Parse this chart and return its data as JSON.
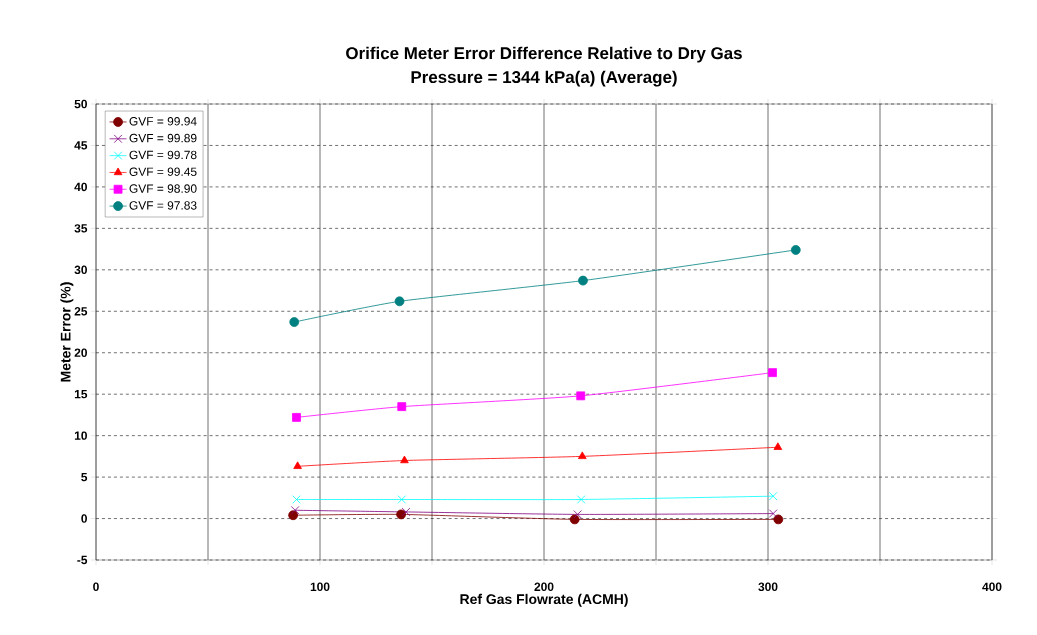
{
  "chart_data": {
    "type": "line",
    "title": "Orifice Meter Error Difference Relative to Dry Gas",
    "subtitle": "Pressure = 1344 kPa(a) (Average)",
    "xlabel": "Ref Gas Flowrate (ACMH)",
    "ylabel": "Meter Error (%)",
    "xlim": [
      0,
      400
    ],
    "xticks": [
      0,
      {
        "value": 50,
        "label": null
      },
      100,
      {
        "value": 150,
        "label": null
      },
      200,
      {
        "value": 250,
        "label": null
      },
      300,
      {
        "value": 350,
        "label": null
      },
      400
    ],
    "ylim": [
      -5,
      50
    ],
    "yticks": [
      -5,
      0,
      5,
      10,
      15,
      20,
      25,
      30,
      35,
      40,
      45,
      50
    ],
    "grid": true,
    "legend": "top left",
    "line_style": "solid",
    "series": [
      {
        "name": "GVF = 99.94",
        "color": "#800000",
        "marker": "circle",
        "x": [
          88,
          136.2,
          213.7,
          304.6
        ],
        "values": [
          0.4,
          0.5,
          -0.1,
          -0.1
        ]
      },
      {
        "name": "GVF = 99.89",
        "color": "#800080",
        "marker": "cross",
        "x": [
          88.9,
          138.4,
          215,
          302.3
        ],
        "values": [
          1.0,
          0.8,
          0.5,
          0.6
        ]
      },
      {
        "name": "GVF = 99.78",
        "color": "#00ffff",
        "marker": "cross",
        "x": [
          89.5,
          136.5,
          216.6,
          302.3
        ],
        "values": [
          2.3,
          2.3,
          2.3,
          2.7
        ]
      },
      {
        "name": "GVF = 99.45",
        "color": "#ff0000",
        "marker": "triangle",
        "x": [
          90,
          137.7,
          217.1,
          304.4
        ],
        "values": [
          6.3,
          7.0,
          7.5,
          8.6
        ]
      },
      {
        "name": "GVF = 98.90",
        "color": "#ff00ff",
        "marker": "square",
        "x": [
          89.5,
          136.5,
          216.4,
          302
        ],
        "values": [
          12.2,
          13.5,
          14.8,
          17.6
        ]
      },
      {
        "name": "GVF = 97.83",
        "color": "#008080",
        "marker": "circle",
        "x": [
          88.5,
          135.5,
          217.4,
          312.4
        ],
        "values": [
          23.7,
          26.2,
          28.7,
          32.4
        ]
      }
    ]
  }
}
